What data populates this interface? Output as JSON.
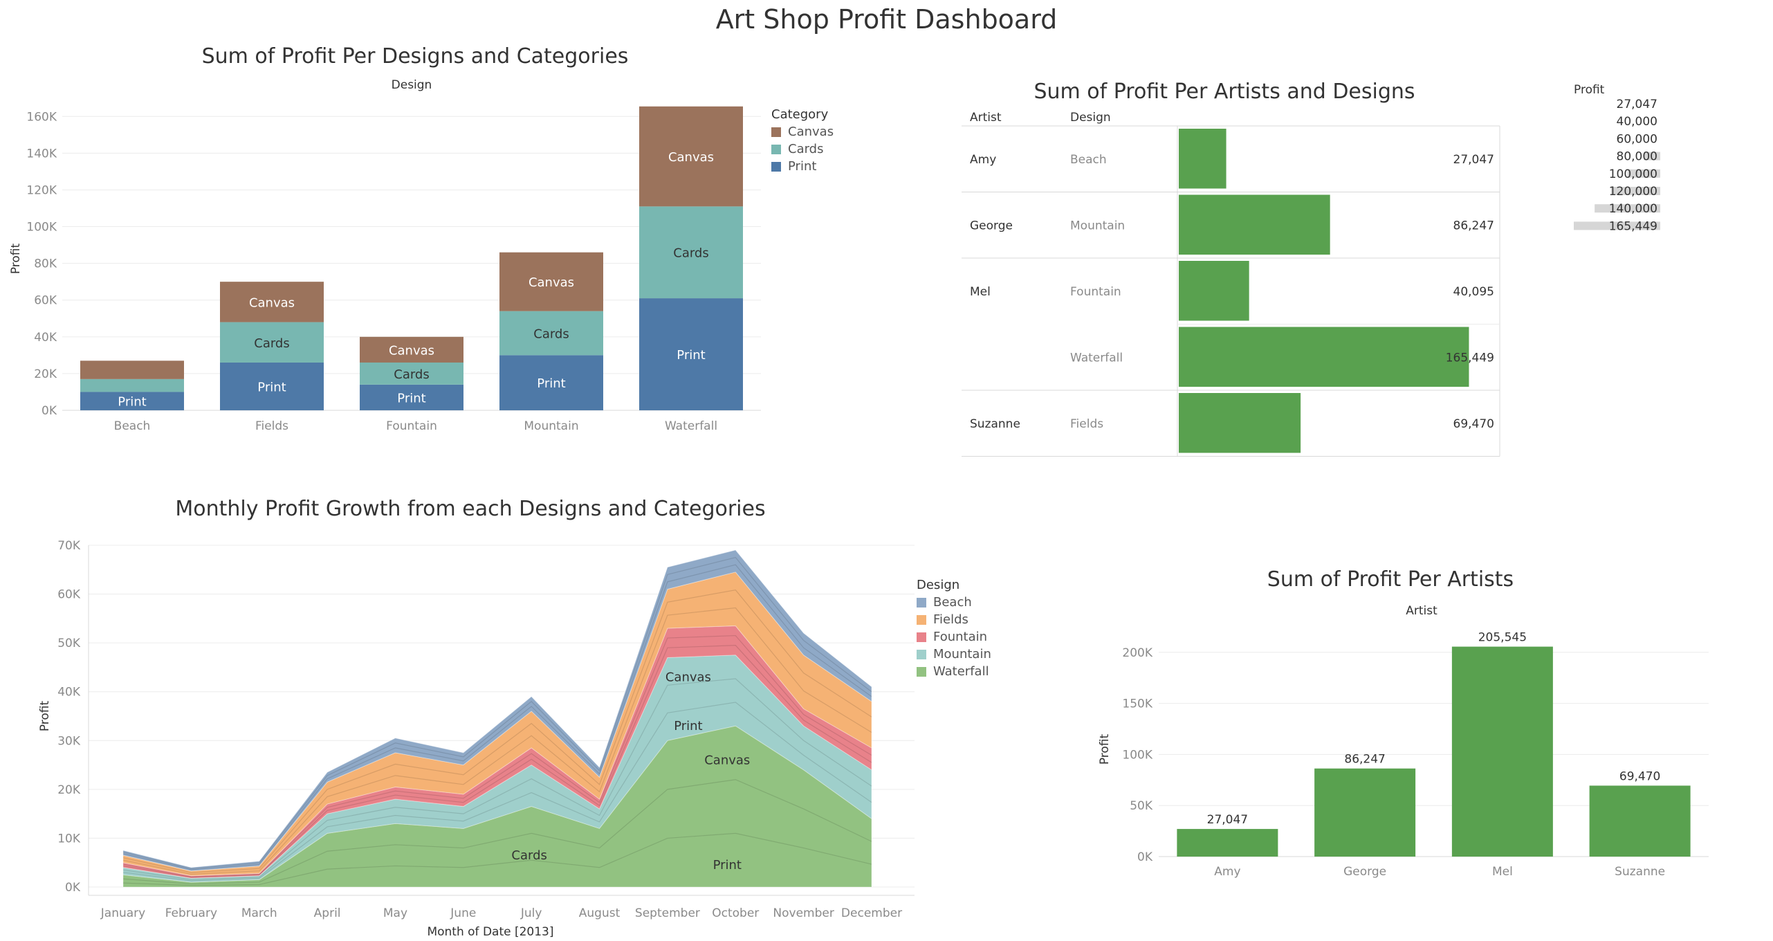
{
  "dashboard": {
    "title": "Art Shop Profit Dashboard"
  },
  "colors": {
    "canvas": "#9b735c",
    "cards": "#78b7b1",
    "print": "#4e79a7",
    "green": "#59a14f",
    "beach": "#8fa9c7",
    "fields": "#f5b274",
    "fountain": "#e8828a",
    "mountain": "#9fcfcb",
    "waterfall": "#92c281",
    "grid": "#ececec"
  },
  "chart_data": [
    {
      "id": "design-category",
      "type": "bar",
      "stacked": true,
      "title": "Sum of Profit Per  Designs and Categories",
      "header": "Design",
      "ylabel": "Profit",
      "ylim": [
        0,
        165000
      ],
      "yticks": [
        0,
        20000,
        40000,
        60000,
        80000,
        100000,
        120000,
        140000,
        160000
      ],
      "ytick_labels": [
        "0K",
        "20K",
        "40K",
        "60K",
        "80K",
        "100K",
        "120K",
        "140K",
        "160K"
      ],
      "grid": true,
      "categories": [
        "Beach",
        "Fields",
        "Fountain",
        "Mountain",
        "Waterfall"
      ],
      "series": [
        {
          "name": "Print",
          "color_key": "print",
          "values": [
            10000,
            26000,
            14000,
            30000,
            61000
          ]
        },
        {
          "name": "Cards",
          "color_key": "cards",
          "values": [
            7000,
            22000,
            12000,
            24000,
            50000
          ]
        },
        {
          "name": "Canvas",
          "color_key": "canvas",
          "values": [
            10000,
            22000,
            14000,
            32000,
            54449
          ]
        }
      ],
      "segment_labels": [
        [
          "Print",
          "",
          ""
        ],
        [
          "Print",
          "Cards",
          "Canvas"
        ],
        [
          "Print",
          "Cards",
          "Canvas"
        ],
        [
          "Print",
          "Cards",
          "Canvas"
        ],
        [
          "Print",
          "Cards",
          "Canvas"
        ]
      ],
      "legend": {
        "title": "Category",
        "items": [
          "Canvas",
          "Cards",
          "Print"
        ],
        "placement": "right"
      }
    },
    {
      "id": "artist-design",
      "type": "bar",
      "orientation": "horizontal",
      "title": "Sum of Profit Per Artists and Designs",
      "headers": {
        "artist": "Artist",
        "design": "Design"
      },
      "xlim": [
        0,
        170000
      ],
      "rows": [
        {
          "artist": "Amy",
          "design": "Beach",
          "value": 27047,
          "label": "27,047"
        },
        {
          "artist": "George",
          "design": "Mountain",
          "value": 86247,
          "label": "86,247"
        },
        {
          "artist": "Mel",
          "design": "Fountain",
          "value": 40095,
          "label": "40,095"
        },
        {
          "artist": "",
          "design": "Waterfall",
          "value": 165449,
          "label": "165,449"
        },
        {
          "artist": "Suzanne",
          "design": "Fields",
          "value": 69470,
          "label": "69,470"
        }
      ],
      "size_legend": {
        "title": "Profit",
        "items": [
          {
            "label": "27,047",
            "value": 27047
          },
          {
            "label": "40,000",
            "value": 40000
          },
          {
            "label": "60,000",
            "value": 60000
          },
          {
            "label": "80,000",
            "value": 80000
          },
          {
            "label": "100,000",
            "value": 100000
          },
          {
            "label": "120,000",
            "value": 120000
          },
          {
            "label": "140,000",
            "value": 140000
          },
          {
            "label": "165,449",
            "value": 165449
          }
        ]
      }
    },
    {
      "id": "monthly-growth",
      "type": "area",
      "stacked": true,
      "title": "Monthly Profit Growth from each  Designs and Categories",
      "xlabel": "Month of Date [2013]",
      "ylabel": "Profit",
      "ylim": [
        0,
        70000
      ],
      "yticks": [
        0,
        10000,
        20000,
        30000,
        40000,
        50000,
        60000,
        70000
      ],
      "ytick_labels": [
        "0K",
        "10K",
        "20K",
        "30K",
        "40K",
        "50K",
        "60K",
        "70K"
      ],
      "grid": true,
      "x": [
        "January",
        "February",
        "March",
        "April",
        "May",
        "June",
        "July",
        "August",
        "September",
        "October",
        "November",
        "December"
      ],
      "series": [
        {
          "name": "Waterfall",
          "color_key": "waterfall",
          "values": [
            2500,
            1000,
            1500,
            11000,
            13000,
            12000,
            16500,
            12000,
            30000,
            33000,
            24000,
            14000
          ]
        },
        {
          "name": "Mountain",
          "color_key": "mountain",
          "values": [
            1500,
            800,
            800,
            4000,
            5000,
            4500,
            8500,
            4000,
            17000,
            14500,
            9000,
            10000
          ]
        },
        {
          "name": "Fountain",
          "color_key": "fountain",
          "values": [
            1000,
            500,
            500,
            2000,
            2500,
            2500,
            3500,
            2000,
            6000,
            6000,
            3500,
            4500
          ]
        },
        {
          "name": "Fields",
          "color_key": "fields",
          "values": [
            1500,
            1000,
            1500,
            4500,
            7000,
            6000,
            7500,
            4500,
            8000,
            11000,
            11000,
            9500
          ]
        },
        {
          "name": "Beach",
          "color_key": "beach",
          "values": [
            1000,
            700,
            1000,
            2000,
            3000,
            2500,
            3000,
            2000,
            4500,
            4500,
            4500,
            3000
          ]
        }
      ],
      "annotations": [
        {
          "text": "Canvas",
          "month": "September",
          "y": 43000
        },
        {
          "text": "Print",
          "month": "September",
          "y": 33000
        },
        {
          "text": "Canvas",
          "month": "October",
          "y": 26000
        },
        {
          "text": "Cards",
          "month": "July",
          "y": 6500
        },
        {
          "text": "Print",
          "month": "October",
          "y": 4500
        }
      ],
      "legend": {
        "title": "Design",
        "items": [
          "Beach",
          "Fields",
          "Fountain",
          "Mountain",
          "Waterfall"
        ],
        "placement": "right"
      }
    },
    {
      "id": "artist-profit",
      "type": "bar",
      "title": "Sum of Profit Per Artists",
      "header": "Artist",
      "ylabel": "Profit",
      "ylim": [
        0,
        210000
      ],
      "yticks": [
        0,
        50000,
        100000,
        150000,
        200000
      ],
      "ytick_labels": [
        "0K",
        "50K",
        "100K",
        "150K",
        "200K"
      ],
      "grid": true,
      "categories": [
        "Amy",
        "George",
        "Mel",
        "Suzanne"
      ],
      "values": [
        27047,
        86247,
        205545,
        69470
      ],
      "value_labels": [
        "27,047",
        "86,247",
        "205,545",
        "69,470"
      ]
    }
  ]
}
